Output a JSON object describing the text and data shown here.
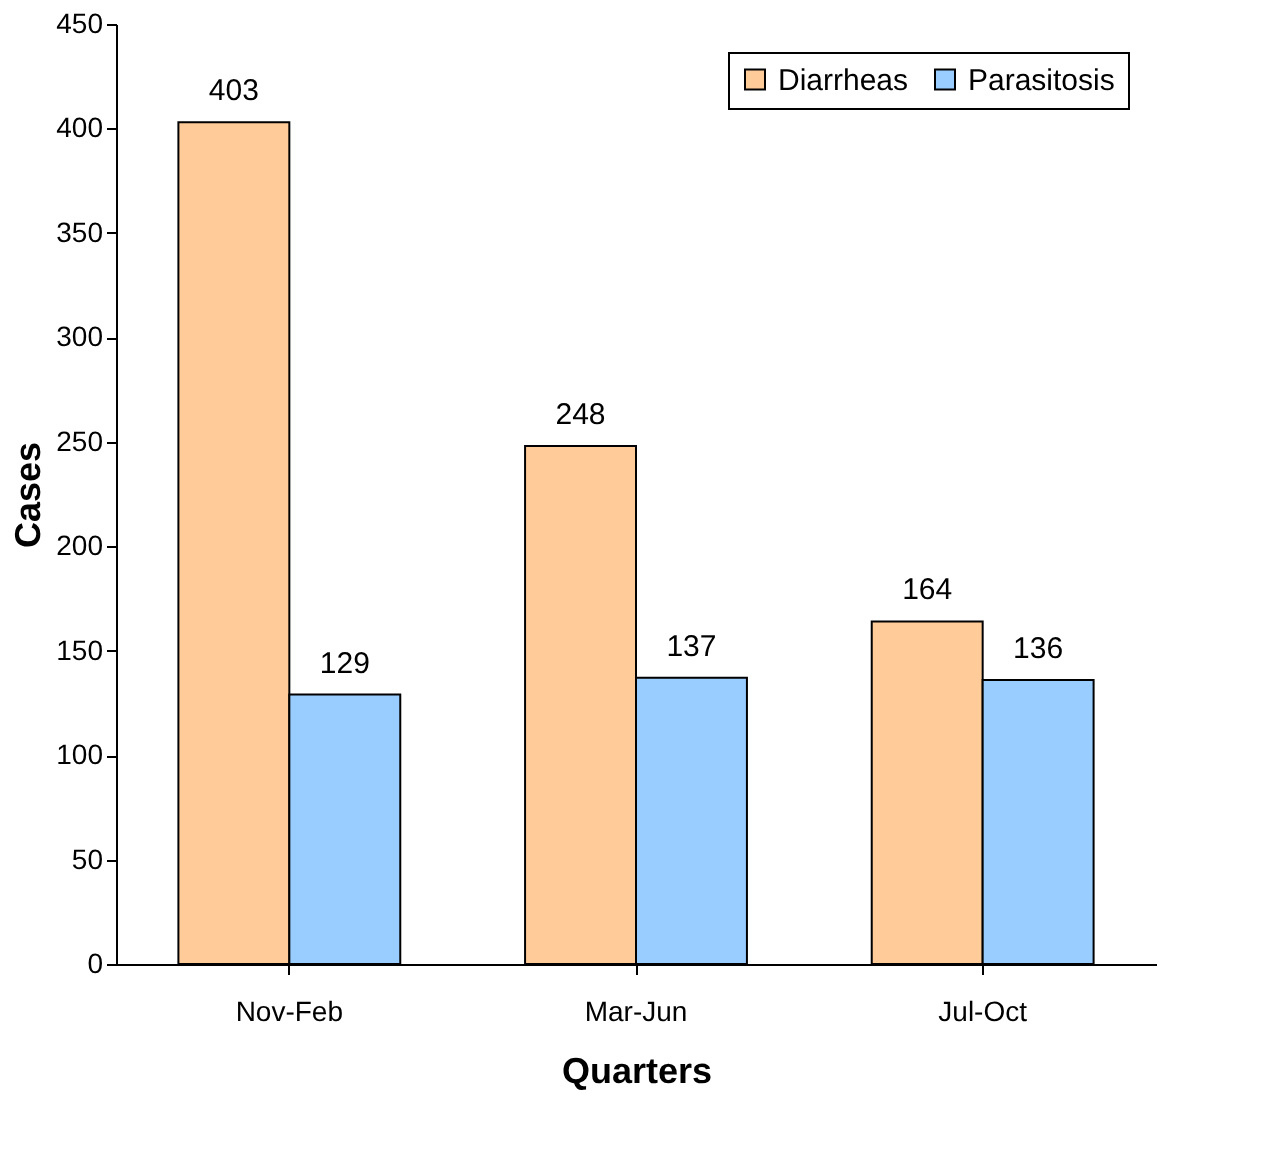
{
  "chart_data": {
    "type": "bar",
    "xlabel": "Quarters",
    "ylabel": "Cases",
    "categories": [
      "Nov-Feb",
      "Mar-Jun",
      "Jul-Oct"
    ],
    "series": [
      {
        "name": "Diarrheas",
        "color": "#ffcc99",
        "values": [
          403,
          248,
          164
        ]
      },
      {
        "name": "Parasitosis",
        "color": "#99ccff",
        "values": [
          129,
          137,
          136
        ]
      }
    ],
    "ylim": [
      0,
      450
    ],
    "yticks": [
      0,
      50,
      100,
      150,
      200,
      250,
      300,
      350,
      400,
      450
    ],
    "grid": false,
    "legend": "top right",
    "data_labels": true
  }
}
